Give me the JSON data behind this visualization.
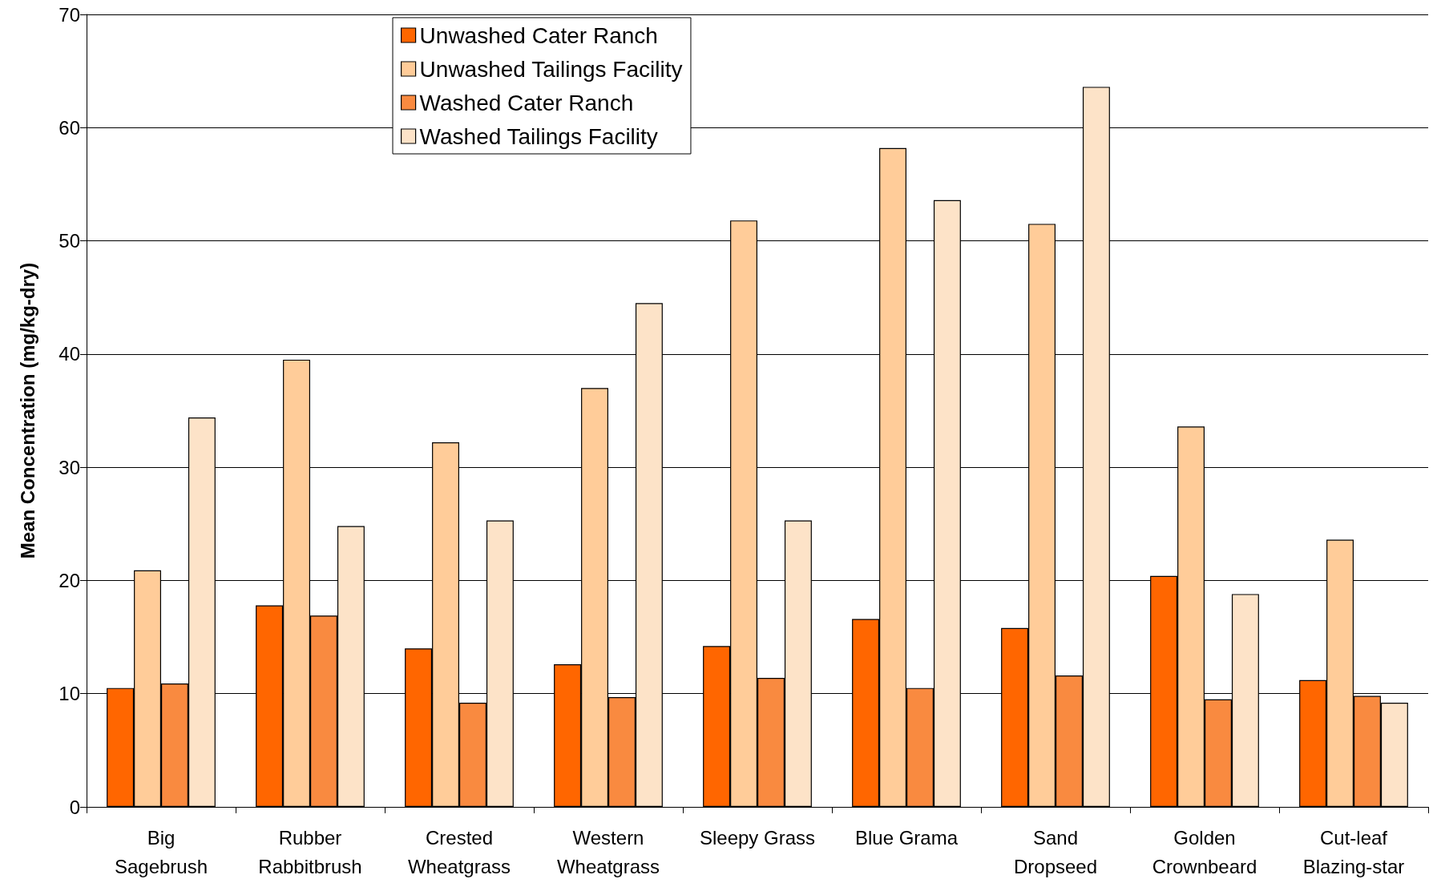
{
  "chart_data": {
    "type": "bar",
    "ylabel": "Mean Concentration (mg/kg-dry)",
    "categories": [
      "Big\nSagebrush",
      "Rubber\nRabbitbrush",
      "Crested\nWheatgrass",
      "Western\nWheatgrass",
      "Sleepy Grass",
      "Blue Grama",
      "Sand\nDropseed",
      "Golden\nCrownbeard",
      "Cut-leaf\nBlazing-star"
    ],
    "series": [
      {
        "name": "Unwashed Cater Ranch",
        "color": "#ff6600",
        "values": [
          10.5,
          17.8,
          14.0,
          12.6,
          14.2,
          16.6,
          15.8,
          20.4,
          11.2
        ]
      },
      {
        "name": "Unwashed Tailings Facility",
        "color": "#ffcc99",
        "values": [
          20.9,
          39.5,
          32.2,
          37.0,
          51.8,
          58.2,
          51.5,
          33.6,
          23.6
        ]
      },
      {
        "name": "Washed Cater Ranch",
        "color": "#f98a40",
        "values": [
          10.9,
          16.9,
          9.2,
          9.7,
          11.4,
          10.5,
          11.6,
          9.5,
          9.8
        ]
      },
      {
        "name": "Washed Tailings Facility",
        "color": "#fde3c8",
        "values": [
          34.4,
          24.8,
          25.3,
          44.5,
          25.3,
          53.6,
          63.6,
          18.8,
          9.2
        ]
      }
    ],
    "ylim": [
      0,
      70
    ],
    "yticks": [
      0,
      10,
      20,
      30,
      40,
      50,
      60,
      70
    ],
    "grid": "y",
    "legend": "top left"
  }
}
